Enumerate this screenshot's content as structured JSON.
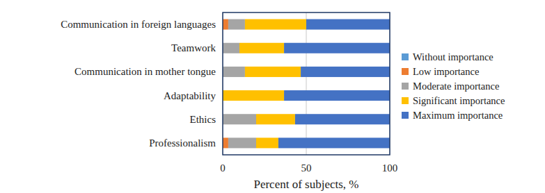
{
  "chart_data": {
    "type": "bar",
    "orientation": "horizontal",
    "stacked": true,
    "grid": true,
    "legend": "right",
    "xlabel": "Percent of subjects, %",
    "categories": [
      "Communication in foreign languages",
      "Teamwork",
      "Communication in mother tongue",
      "Adaptability",
      "Ethics",
      "Professionalism"
    ],
    "series": [
      {
        "name": "Without importance",
        "color": "#5b9bd5",
        "values": [
          0,
          0,
          0,
          0,
          0,
          0
        ]
      },
      {
        "name": "Low importance",
        "color": "#ed7d31",
        "values": [
          3.3,
          0,
          0,
          0,
          0,
          3.3
        ]
      },
      {
        "name": "Moderate importance",
        "color": "#a5a5a5",
        "values": [
          10,
          10,
          13.3,
          0,
          20,
          16.7
        ]
      },
      {
        "name": "Significant importance",
        "color": "#ffc000",
        "values": [
          36.7,
          26.7,
          33.4,
          36.7,
          23.3,
          13.3
        ]
      },
      {
        "name": "Maximum importance",
        "color": "#4472c4",
        "values": [
          50,
          63.3,
          53.3,
          63.3,
          56.7,
          66.7
        ]
      }
    ],
    "xlim": [
      0,
      100
    ],
    "xticks": [
      0,
      50,
      100
    ]
  }
}
